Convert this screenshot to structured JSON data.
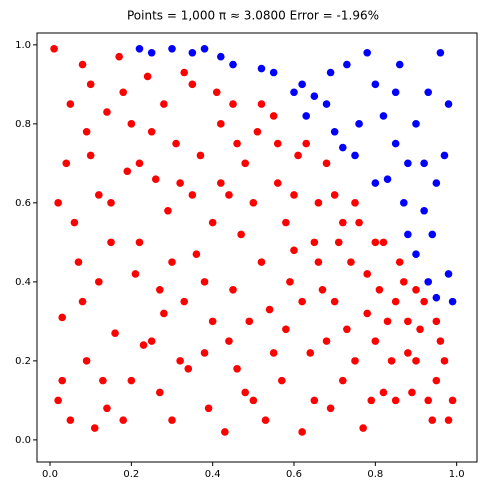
{
  "chart_data": {
    "type": "scatter",
    "title": "Points = 1,000   π ≈ 3.0800   Error = -1.96%",
    "xlim": [
      -0.032,
      1.05
    ],
    "ylim": [
      -0.056,
      1.03
    ],
    "xticks": [
      {
        "value": 0,
        "label": "0.0"
      },
      {
        "value": 0.2,
        "label": "0.2"
      },
      {
        "value": 0.4,
        "label": "0.4"
      },
      {
        "value": 0.6,
        "label": "0.6"
      },
      {
        "value": 0.8,
        "label": "0.8"
      },
      {
        "value": 1,
        "label": "1.0"
      }
    ],
    "yticks": [
      {
        "value": 0,
        "label": "0.0"
      },
      {
        "value": 0.2,
        "label": "0.2"
      },
      {
        "value": 0.4,
        "label": "0.4"
      },
      {
        "value": 0.6,
        "label": "0.6"
      },
      {
        "value": 0.8,
        "label": "0.8"
      },
      {
        "value": 1,
        "label": "1.0"
      }
    ],
    "grid": false,
    "series": [
      {
        "color": "#ff0000",
        "x": [
          0.01,
          0.02,
          0.05,
          0.08,
          0.1,
          0.12,
          0.03,
          0.15,
          0.18,
          0.2,
          0.22,
          0.25,
          0.28,
          0.3,
          0.32,
          0.35,
          0.38,
          0.4,
          0.42,
          0.45,
          0.48,
          0.5,
          0.52,
          0.55,
          0.58,
          0.6,
          0.62,
          0.65,
          0.68,
          0.7,
          0.72,
          0.75,
          0.78,
          0.8,
          0.82,
          0.85,
          0.88,
          0.9,
          0.92,
          0.95,
          0.98,
          0.97,
          0.06,
          0.09,
          0.11,
          0.14,
          0.16,
          0.19,
          0.21,
          0.24,
          0.27,
          0.29,
          0.31,
          0.33,
          0.36,
          0.39,
          0.41,
          0.44,
          0.46,
          0.49,
          0.51,
          0.53,
          0.56,
          0.59,
          0.61,
          0.64,
          0.66,
          0.69,
          0.71,
          0.73,
          0.76,
          0.79,
          0.81,
          0.84,
          0.86,
          0.89,
          0.91,
          0.94,
          0.96,
          0.99,
          0.04,
          0.07,
          0.13,
          0.17,
          0.23,
          0.26,
          0.34,
          0.37,
          0.43,
          0.47,
          0.54,
          0.57,
          0.63,
          0.67,
          0.74,
          0.77,
          0.83,
          0.87,
          0.93,
          0.02,
          0.05,
          0.1,
          0.15,
          0.2,
          0.25,
          0.3,
          0.35,
          0.4,
          0.45,
          0.5,
          0.55,
          0.6,
          0.65,
          0.7,
          0.75,
          0.8,
          0.85,
          0.9,
          0.08,
          0.12,
          0.18,
          0.22,
          0.28,
          0.32,
          0.38,
          0.42,
          0.48,
          0.52,
          0.58,
          0.62,
          0.68,
          0.72,
          0.78,
          0.82,
          0.88,
          0.95,
          0.03,
          0.14,
          0.33,
          0.46,
          0.56,
          0.66,
          0.44,
          0.27,
          0.09
        ],
        "values": [
          0.99,
          0.1,
          0.85,
          0.95,
          0.72,
          0.4,
          0.31,
          0.6,
          0.88,
          0.15,
          0.5,
          0.78,
          0.32,
          0.05,
          0.65,
          0.9,
          0.22,
          0.55,
          0.8,
          0.38,
          0.7,
          0.1,
          0.45,
          0.82,
          0.28,
          0.62,
          0.02,
          0.5,
          0.7,
          0.35,
          0.15,
          0.6,
          0.42,
          0.25,
          0.5,
          0.1,
          0.3,
          0.2,
          0.35,
          0.15,
          0.05,
          0.2,
          0.55,
          0.2,
          0.03,
          0.83,
          0.27,
          0.68,
          0.42,
          0.92,
          0.12,
          0.58,
          0.75,
          0.35,
          0.47,
          0.08,
          0.88,
          0.62,
          0.18,
          0.3,
          0.78,
          0.05,
          0.65,
          0.4,
          0.72,
          0.22,
          0.6,
          0.08,
          0.5,
          0.28,
          0.55,
          0.1,
          0.38,
          0.2,
          0.45,
          0.12,
          0.28,
          0.05,
          0.25,
          0.1,
          0.7,
          0.45,
          0.15,
          0.97,
          0.24,
          0.66,
          0.18,
          0.72,
          0.02,
          0.52,
          0.33,
          0.15,
          0.75,
          0.38,
          0.45,
          0.03,
          0.3,
          0.4,
          0.1,
          0.6,
          0.05,
          0.9,
          0.5,
          0.8,
          0.25,
          0.45,
          0.62,
          0.3,
          0.85,
          0.6,
          0.22,
          0.48,
          0.1,
          0.62,
          0.2,
          0.5,
          0.35,
          0.38,
          0.35,
          0.62,
          0.05,
          0.7,
          0.85,
          0.2,
          0.4,
          0.65,
          0.12,
          0.85,
          0.55,
          0.35,
          0.25,
          0.55,
          0.32,
          0.12,
          0.22,
          0.3,
          0.15,
          0.08,
          0.93,
          0.75,
          0.75,
          0.45,
          0.25,
          0.38,
          0.78
        ]
      },
      {
        "color": "#0000ff",
        "x": [
          0.22,
          0.25,
          0.3,
          0.35,
          0.38,
          0.42,
          0.45,
          0.52,
          0.55,
          0.6,
          0.62,
          0.65,
          0.63,
          0.68,
          0.7,
          0.72,
          0.75,
          0.73,
          0.78,
          0.8,
          0.82,
          0.85,
          0.83,
          0.87,
          0.88,
          0.9,
          0.93,
          0.95,
          0.99,
          0.98,
          0.92,
          0.95,
          0.97,
          0.9,
          0.93,
          0.98,
          0.86,
          0.96,
          0.88,
          0.8,
          0.76,
          0.92,
          0.85,
          0.94,
          0.69
        ],
        "values": [
          0.99,
          0.98,
          0.99,
          0.98,
          0.99,
          0.97,
          0.95,
          0.94,
          0.93,
          0.88,
          0.9,
          0.87,
          0.82,
          0.85,
          0.78,
          0.74,
          0.72,
          0.95,
          0.98,
          0.9,
          0.82,
          0.75,
          0.66,
          0.6,
          0.52,
          0.47,
          0.4,
          0.36,
          0.35,
          0.42,
          0.58,
          0.65,
          0.72,
          0.8,
          0.88,
          0.85,
          0.95,
          0.98,
          0.7,
          0.65,
          0.8,
          0.7,
          0.88,
          0.52,
          0.93
        ]
      }
    ]
  }
}
